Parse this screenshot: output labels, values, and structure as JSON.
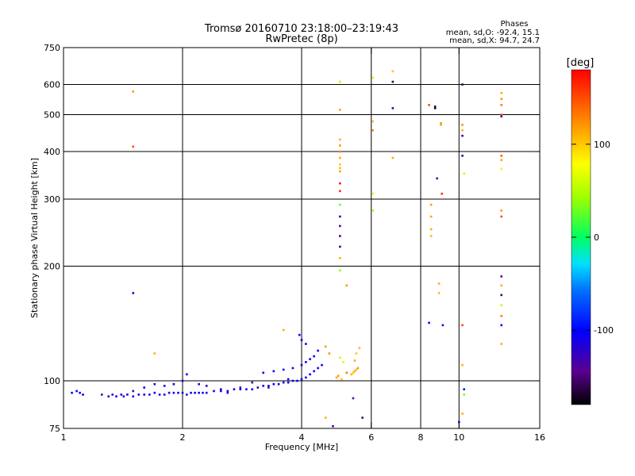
{
  "chart_data": {
    "type": "scatter",
    "title": "Tromsø 20160710 23:18:00–23:19:43",
    "subtitle": "RwPretec (8p)",
    "xlabel": "Frequency [MHz]",
    "ylabel": "Stationary phase Virtual Height [km]",
    "x_scale": "log",
    "y_scale": "log",
    "xlim": [
      1,
      16
    ],
    "ylim": [
      75,
      750
    ],
    "x_ticks": [
      1,
      2,
      4,
      6,
      8,
      10,
      16
    ],
    "y_ticks": [
      75,
      100,
      200,
      300,
      400,
      500,
      600,
      750
    ],
    "grid_x": [
      2,
      4,
      6,
      8,
      10
    ],
    "grid_y": [
      100,
      200,
      300,
      400,
      500,
      600
    ],
    "colorbar": {
      "label": "[deg]",
      "ticks": [
        100,
        0,
        -100
      ],
      "range": [
        -180,
        180
      ]
    },
    "phases_box": {
      "title": "Phases",
      "line_o": "mean, sd,O: -92.4, 15.1",
      "line_x": "mean, sd,X:  94.7, 24.7"
    },
    "series": [
      {
        "points": [
          [
            1.05,
            93,
            -105
          ],
          [
            1.08,
            94,
            -100
          ],
          [
            1.1,
            93,
            -110
          ],
          [
            1.12,
            92,
            -95
          ],
          [
            1.3,
            91,
            -110
          ],
          [
            1.33,
            92,
            -120
          ],
          [
            1.36,
            91,
            -105
          ],
          [
            1.4,
            92,
            -100
          ],
          [
            1.42,
            91,
            -130
          ],
          [
            1.45,
            92,
            -110
          ],
          [
            1.5,
            91,
            -105
          ],
          [
            1.55,
            92,
            -100
          ],
          [
            1.6,
            92,
            -110
          ],
          [
            1.65,
            92,
            -115
          ],
          [
            1.7,
            93,
            -105
          ],
          [
            1.75,
            92,
            -100
          ],
          [
            1.8,
            92,
            -110
          ],
          [
            1.85,
            93,
            -120
          ],
          [
            1.9,
            93,
            -105
          ],
          [
            1.95,
            93,
            -100
          ],
          [
            2.0,
            93,
            -110
          ],
          [
            2.05,
            92,
            -115
          ],
          [
            2.1,
            93,
            -105
          ],
          [
            2.15,
            93,
            -100
          ],
          [
            2.2,
            93,
            -110
          ],
          [
            2.25,
            93,
            -105
          ],
          [
            2.3,
            93,
            -100
          ],
          [
            2.4,
            94,
            -110
          ],
          [
            2.5,
            94,
            -105
          ],
          [
            2.6,
            94,
            -115
          ],
          [
            2.7,
            95,
            -100
          ],
          [
            2.8,
            95,
            -110
          ],
          [
            2.9,
            95,
            -105
          ],
          [
            3.0,
            95,
            -100
          ],
          [
            3.1,
            96,
            -110
          ],
          [
            3.2,
            97,
            -105
          ],
          [
            3.3,
            97,
            -115
          ],
          [
            3.4,
            98,
            -100
          ],
          [
            3.5,
            98,
            -110
          ],
          [
            3.6,
            99,
            -105
          ],
          [
            3.7,
            99,
            -100
          ],
          [
            3.8,
            100,
            -110
          ],
          [
            3.9,
            100,
            -105
          ],
          [
            4.0,
            101,
            -100
          ],
          [
            4.1,
            102,
            -110
          ],
          [
            4.2,
            104,
            -105
          ],
          [
            4.3,
            106,
            -100
          ],
          [
            4.4,
            108,
            -110
          ],
          [
            4.5,
            110,
            -105
          ],
          [
            3.2,
            105,
            -110
          ],
          [
            3.4,
            106,
            -105
          ],
          [
            3.6,
            107,
            -100
          ],
          [
            3.8,
            108,
            -110
          ],
          [
            4.0,
            110,
            -105
          ],
          [
            4.1,
            112,
            -100
          ],
          [
            4.2,
            114,
            -110
          ],
          [
            4.3,
            116,
            -105
          ],
          [
            4.4,
            120,
            -100
          ],
          [
            4.1,
            125,
            -110
          ],
          [
            4.0,
            128,
            -105
          ],
          [
            3.95,
            132,
            -100
          ],
          [
            1.9,
            98,
            -105
          ],
          [
            2.0,
            100,
            -110
          ],
          [
            2.05,
            104,
            -100
          ],
          [
            2.2,
            98,
            -105
          ],
          [
            2.3,
            97,
            -110
          ],
          [
            1.8,
            97,
            -100
          ],
          [
            1.7,
            98,
            -115
          ],
          [
            1.6,
            96,
            -105
          ],
          [
            2.5,
            95,
            -120
          ],
          [
            2.8,
            96,
            -130
          ],
          [
            3.0,
            99,
            -140
          ],
          [
            2.6,
            93,
            -125
          ],
          [
            3.3,
            96,
            -135
          ],
          [
            3.7,
            101,
            -125
          ],
          [
            1.5,
            94,
            -135
          ],
          [
            1.25,
            92,
            -140
          ],
          [
            4.9,
            102,
            110
          ],
          [
            4.95,
            103,
            120
          ],
          [
            5.05,
            101,
            100
          ],
          [
            5.35,
            104,
            110
          ],
          [
            5.4,
            105,
            100
          ],
          [
            5.45,
            106,
            115
          ],
          [
            5.5,
            107,
            105
          ],
          [
            5.55,
            108,
            120
          ],
          [
            5.45,
            113,
            110
          ],
          [
            5.5,
            118,
            100
          ],
          [
            5.6,
            122,
            105
          ],
          [
            4.6,
            123,
            115
          ],
          [
            4.7,
            118,
            120
          ],
          [
            5.0,
            115,
            90
          ],
          [
            5.1,
            112,
            60
          ],
          [
            5.2,
            105,
            130
          ],
          [
            5.0,
            430,
            110
          ],
          [
            5.0,
            415,
            120
          ],
          [
            5.0,
            400,
            130
          ],
          [
            5.0,
            385,
            110
          ],
          [
            5.0,
            370,
            100
          ],
          [
            5.0,
            362,
            105
          ],
          [
            5.0,
            355,
            115
          ],
          [
            5.0,
            330,
            170
          ],
          [
            5.0,
            315,
            160
          ],
          [
            5.0,
            290,
            30
          ],
          [
            5.0,
            270,
            -110
          ],
          [
            5.0,
            255,
            -140
          ],
          [
            5.0,
            240,
            -150
          ],
          [
            5.0,
            225,
            -120
          ],
          [
            5.0,
            210,
            110
          ],
          [
            5.0,
            195,
            40
          ],
          [
            5.2,
            178,
            120
          ],
          [
            5.0,
            515,
            115
          ],
          [
            5.0,
            610,
            50
          ],
          [
            6.05,
            625,
            50
          ],
          [
            6.05,
            480,
            110
          ],
          [
            6.05,
            455,
            130
          ],
          [
            6.05,
            310,
            60
          ],
          [
            6.05,
            280,
            40
          ],
          [
            6.8,
            610,
            -160
          ],
          [
            6.8,
            520,
            -150
          ],
          [
            6.8,
            650,
            100
          ],
          [
            6.8,
            385,
            110
          ],
          [
            8.4,
            530,
            150
          ],
          [
            8.7,
            525,
            -160
          ],
          [
            8.7,
            520,
            -170
          ],
          [
            9.0,
            475,
            120
          ],
          [
            9.0,
            470,
            110
          ],
          [
            9.05,
            310,
            160
          ],
          [
            8.8,
            340,
            -140
          ],
          [
            8.5,
            290,
            120
          ],
          [
            8.5,
            270,
            115
          ],
          [
            8.5,
            250,
            110
          ],
          [
            8.5,
            240,
            105
          ],
          [
            8.9,
            180,
            110
          ],
          [
            8.9,
            170,
            105
          ],
          [
            8.4,
            142,
            -110
          ],
          [
            9.1,
            140,
            -120
          ],
          [
            10.2,
            600,
            -160
          ],
          [
            10.2,
            470,
            120
          ],
          [
            10.2,
            455,
            110
          ],
          [
            10.2,
            440,
            -130
          ],
          [
            10.2,
            390,
            -150
          ],
          [
            10.3,
            350,
            60
          ],
          [
            10.2,
            140,
            150
          ],
          [
            10.2,
            110,
            110
          ],
          [
            10.3,
            95,
            -110
          ],
          [
            10.3,
            92,
            30
          ],
          [
            10.2,
            82,
            110
          ],
          [
            10.0,
            78,
            -90
          ],
          [
            12.8,
            570,
            110
          ],
          [
            12.8,
            550,
            120
          ],
          [
            12.8,
            530,
            130
          ],
          [
            12.8,
            500,
            140
          ],
          [
            12.8,
            495,
            -130
          ],
          [
            12.8,
            390,
            140
          ],
          [
            12.8,
            380,
            110
          ],
          [
            12.8,
            360,
            70
          ],
          [
            12.8,
            280,
            120
          ],
          [
            12.8,
            270,
            150
          ],
          [
            12.8,
            188,
            -140
          ],
          [
            12.8,
            178,
            110
          ],
          [
            12.8,
            168,
            -150
          ],
          [
            12.8,
            158,
            60
          ],
          [
            12.8,
            148,
            130
          ],
          [
            12.8,
            140,
            -110
          ],
          [
            12.8,
            125,
            110
          ],
          [
            1.5,
            575,
            120
          ],
          [
            1.5,
            412,
            150
          ],
          [
            1.5,
            170,
            -130
          ],
          [
            1.7,
            118,
            110
          ],
          [
            3.6,
            136,
            110
          ],
          [
            5.7,
            80,
            -150
          ],
          [
            4.6,
            80,
            110
          ],
          [
            4.8,
            76,
            -130
          ],
          [
            5.4,
            90,
            -140
          ]
        ]
      }
    ]
  }
}
